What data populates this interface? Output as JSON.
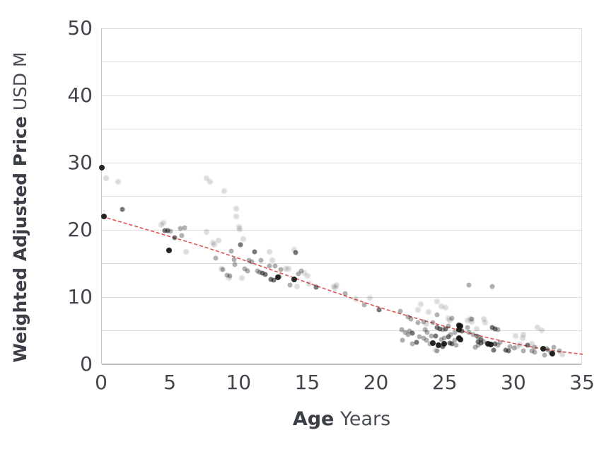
{
  "chart_data": {
    "type": "scatter",
    "title": "",
    "ylabel_bold": "Weighted Adjusted Price",
    "ylabel_rest": "USD M",
    "xlabel_bold": "Age",
    "xlabel_rest": "Years",
    "xlim": [
      0,
      35
    ],
    "ylim": [
      0,
      50
    ],
    "x_ticks": [
      0,
      5,
      10,
      15,
      20,
      25,
      30,
      35
    ],
    "y_ticks": [
      0,
      10,
      20,
      30,
      40,
      50
    ],
    "gridline_step": 5,
    "grid_on": true,
    "legend": "none",
    "colors": {
      "point": "#141414",
      "trend": "#e05353",
      "grid": "#dcdddf",
      "axis_line": "#b9bcc0",
      "text_dark": "#3b3e46",
      "text_regular": "#484c54"
    },
    "shade_opacity": {
      "l": 0.15,
      "m": 0.33,
      "d": 0.58,
      "k": 0.93
    },
    "shade_size": {
      "l": 8,
      "m": 7,
      "d": 7,
      "k": 8
    },
    "trend": {
      "style": "dashed",
      "color": "#e05353",
      "anchors": [
        [
          0,
          22
        ],
        [
          4,
          19.6
        ],
        [
          8,
          17.1
        ],
        [
          12,
          14.3
        ],
        [
          16,
          11.4
        ],
        [
          20,
          8.6
        ],
        [
          24,
          6.2
        ],
        [
          28,
          4.0
        ],
        [
          31,
          2.7
        ],
        [
          33,
          2.0
        ],
        [
          35,
          1.5
        ]
      ]
    },
    "points": [
      [
        0.0,
        29.3,
        "k"
      ],
      [
        0.3,
        27.7,
        "l"
      ],
      [
        1.2,
        27.2,
        "l"
      ],
      [
        1.5,
        23.1,
        "d"
      ],
      [
        0.15,
        22.0,
        "k"
      ],
      [
        4.3,
        20.7,
        "l"
      ],
      [
        4.5,
        21.1,
        "l"
      ],
      [
        4.6,
        19.9,
        "d"
      ],
      [
        4.8,
        19.9,
        "d"
      ],
      [
        5.0,
        19.8,
        "m"
      ],
      [
        5.3,
        18.8,
        "d"
      ],
      [
        4.9,
        17.0,
        "k"
      ],
      [
        5.7,
        20.2,
        "m"
      ],
      [
        6.0,
        20.3,
        "m"
      ],
      [
        5.8,
        19.2,
        "m"
      ],
      [
        6.1,
        16.7,
        "l"
      ],
      [
        7.6,
        27.7,
        "l"
      ],
      [
        7.9,
        27.2,
        "l"
      ],
      [
        8.9,
        25.8,
        "l"
      ],
      [
        7.6,
        19.7,
        "l"
      ],
      [
        8.1,
        18.1,
        "l"
      ],
      [
        8.2,
        17.8,
        "l"
      ],
      [
        8.5,
        18.4,
        "l"
      ],
      [
        8.3,
        15.8,
        "m"
      ],
      [
        8.7,
        14.2,
        "l"
      ],
      [
        8.8,
        14.1,
        "m"
      ],
      [
        9.1,
        13.3,
        "m"
      ],
      [
        9.3,
        13.2,
        "m"
      ],
      [
        9.25,
        12.8,
        "l"
      ],
      [
        9.8,
        23.2,
        "l"
      ],
      [
        9.8,
        22.0,
        "l"
      ],
      [
        10.0,
        20.4,
        "l"
      ],
      [
        10.05,
        20.1,
        "l"
      ],
      [
        10.3,
        18.6,
        "l"
      ],
      [
        10.1,
        17.8,
        "d"
      ],
      [
        9.4,
        16.8,
        "m"
      ],
      [
        9.6,
        15.6,
        "m"
      ],
      [
        9.7,
        14.8,
        "m"
      ],
      [
        10.2,
        12.8,
        "l"
      ],
      [
        10.4,
        14.2,
        "m"
      ],
      [
        10.6,
        13.9,
        "m"
      ],
      [
        10.7,
        15.5,
        "m"
      ],
      [
        10.9,
        15.3,
        "m"
      ],
      [
        11.1,
        16.7,
        "d"
      ],
      [
        11.3,
        13.9,
        "m"
      ],
      [
        11.5,
        13.7,
        "m"
      ],
      [
        11.6,
        15.5,
        "m"
      ],
      [
        12.2,
        16.7,
        "l"
      ],
      [
        12.4,
        15.5,
        "l"
      ],
      [
        11.7,
        13.6,
        "d"
      ],
      [
        11.9,
        13.4,
        "d"
      ],
      [
        12.3,
        12.6,
        "d"
      ],
      [
        12.5,
        12.5,
        "d"
      ],
      [
        12.6,
        14.6,
        "m"
      ],
      [
        12.9,
        13.1,
        "m"
      ],
      [
        12.2,
        14.6,
        "m"
      ],
      [
        12.8,
        13.0,
        "k"
      ],
      [
        13.0,
        14.1,
        "m"
      ],
      [
        13.4,
        14.2,
        "l"
      ],
      [
        13.6,
        14.2,
        "l"
      ],
      [
        13.7,
        11.8,
        "m"
      ],
      [
        14.0,
        17.1,
        "l"
      ],
      [
        14.1,
        16.6,
        "d"
      ],
      [
        14.0,
        12.6,
        "k"
      ],
      [
        14.3,
        13.5,
        "m"
      ],
      [
        14.5,
        13.9,
        "m"
      ],
      [
        14.7,
        13.6,
        "l"
      ],
      [
        15.0,
        13.2,
        "l"
      ],
      [
        15.1,
        12.0,
        "l"
      ],
      [
        14.2,
        11.6,
        "l"
      ],
      [
        15.6,
        11.5,
        "d"
      ],
      [
        16.9,
        11.6,
        "l"
      ],
      [
        17.0,
        11.4,
        "l"
      ],
      [
        17.1,
        11.8,
        "l"
      ],
      [
        17.7,
        10.5,
        "m"
      ],
      [
        18.5,
        9.7,
        "l"
      ],
      [
        19.1,
        8.8,
        "m"
      ],
      [
        19.5,
        9.9,
        "l"
      ],
      [
        20.2,
        8.1,
        "d"
      ],
      [
        21.7,
        7.9,
        "m"
      ],
      [
        22.3,
        7.1,
        "m"
      ],
      [
        22.5,
        6.7,
        "m"
      ],
      [
        23.0,
        8.1,
        "l"
      ],
      [
        23.2,
        8.9,
        "l"
      ],
      [
        23.8,
        7.8,
        "l"
      ],
      [
        23.4,
        6.3,
        "m"
      ],
      [
        23.0,
        6.2,
        "m"
      ],
      [
        23.6,
        6.0,
        "l"
      ],
      [
        24.1,
        6.2,
        "m"
      ],
      [
        24.4,
        7.4,
        "m"
      ],
      [
        24.7,
        8.6,
        "l"
      ],
      [
        25.0,
        8.4,
        "l"
      ],
      [
        24.4,
        9.4,
        "l"
      ],
      [
        25.3,
        6.5,
        "l"
      ],
      [
        25.5,
        6.8,
        "m"
      ],
      [
        25.2,
        6.8,
        "l"
      ],
      [
        21.8,
        5.2,
        "m"
      ],
      [
        21.9,
        3.6,
        "m"
      ],
      [
        22.1,
        4.7,
        "m"
      ],
      [
        22.3,
        4.4,
        "m"
      ],
      [
        22.4,
        4.9,
        "m"
      ],
      [
        22.6,
        4.6,
        "d"
      ],
      [
        22.9,
        3.3,
        "d"
      ],
      [
        22.6,
        3.1,
        "m"
      ],
      [
        23.1,
        4.1,
        "m"
      ],
      [
        23.4,
        3.9,
        "m"
      ],
      [
        23.5,
        5.2,
        "m"
      ],
      [
        23.6,
        3.6,
        "m"
      ],
      [
        23.7,
        4.7,
        "m"
      ],
      [
        23.9,
        3.1,
        "m"
      ],
      [
        24.0,
        4.2,
        "m"
      ],
      [
        24.1,
        3.2,
        "k"
      ],
      [
        24.3,
        4.2,
        "d"
      ],
      [
        24.4,
        5.5,
        "d"
      ],
      [
        24.6,
        5.3,
        "d"
      ],
      [
        24.8,
        5.2,
        "m"
      ],
      [
        25.0,
        5.3,
        "d"
      ],
      [
        25.2,
        5.7,
        "m"
      ],
      [
        25.2,
        4.1,
        "d"
      ],
      [
        24.9,
        3.9,
        "m"
      ],
      [
        24.7,
        3.7,
        "m"
      ],
      [
        24.5,
        2.8,
        "k"
      ],
      [
        24.8,
        2.6,
        "d"
      ],
      [
        24.4,
        2.0,
        "m"
      ],
      [
        24.3,
        2.1,
        "l"
      ],
      [
        24.9,
        3.1,
        "k"
      ],
      [
        25.4,
        4.4,
        "m"
      ],
      [
        25.7,
        4.7,
        "m"
      ],
      [
        25.3,
        3.2,
        "d"
      ],
      [
        25.7,
        3.6,
        "m"
      ],
      [
        25.5,
        3.1,
        "d"
      ],
      [
        25.8,
        2.8,
        "m"
      ],
      [
        26.0,
        5.8,
        "k"
      ],
      [
        26.1,
        5.7,
        "k"
      ],
      [
        26.0,
        5.2,
        "k"
      ],
      [
        26.2,
        4.9,
        "d"
      ],
      [
        26.0,
        3.9,
        "k"
      ],
      [
        26.1,
        3.7,
        "k"
      ],
      [
        26.6,
        5.5,
        "m"
      ],
      [
        26.7,
        4.7,
        "m"
      ],
      [
        27.0,
        4.4,
        "m"
      ],
      [
        27.3,
        5.3,
        "l"
      ],
      [
        27.4,
        4.1,
        "m"
      ],
      [
        27.6,
        3.7,
        "d"
      ],
      [
        26.9,
        6.3,
        "l"
      ],
      [
        26.6,
        6.5,
        "l"
      ],
      [
        26.8,
        6.7,
        "l"
      ],
      [
        27.2,
        2.5,
        "m"
      ],
      [
        27.4,
        2.8,
        "m"
      ],
      [
        26.7,
        11.8,
        "m"
      ],
      [
        28.4,
        11.6,
        "m"
      ],
      [
        26.9,
        6.7,
        "m"
      ],
      [
        27.8,
        6.7,
        "l"
      ],
      [
        27.9,
        6.2,
        "l"
      ],
      [
        28.4,
        5.5,
        "d"
      ],
      [
        28.6,
        5.3,
        "d"
      ],
      [
        28.8,
        5.2,
        "m"
      ],
      [
        27.3,
        4.2,
        "m"
      ],
      [
        27.4,
        3.4,
        "d"
      ],
      [
        27.6,
        3.2,
        "d"
      ],
      [
        27.8,
        3.4,
        "m"
      ],
      [
        28.1,
        3.1,
        "k"
      ],
      [
        28.3,
        2.9,
        "k"
      ],
      [
        28.6,
        3.1,
        "d"
      ],
      [
        28.8,
        2.8,
        "m"
      ],
      [
        29.0,
        3.3,
        "m"
      ],
      [
        28.5,
        2.1,
        "d"
      ],
      [
        29.4,
        2.1,
        "d"
      ],
      [
        29.6,
        2.0,
        "d"
      ],
      [
        29.7,
        2.6,
        "m"
      ],
      [
        30.0,
        2.4,
        "m"
      ],
      [
        30.1,
        4.2,
        "l"
      ],
      [
        30.2,
        2.6,
        "l"
      ],
      [
        30.4,
        2.9,
        "l"
      ],
      [
        30.6,
        3.9,
        "l"
      ],
      [
        30.7,
        4.4,
        "l"
      ],
      [
        30.7,
        2.0,
        "m"
      ],
      [
        31.0,
        2.8,
        "d"
      ],
      [
        31.3,
        3.1,
        "l"
      ],
      [
        31.3,
        2.0,
        "m"
      ],
      [
        31.5,
        2.5,
        "m"
      ],
      [
        31.5,
        1.8,
        "m"
      ],
      [
        31.7,
        5.5,
        "l"
      ],
      [
        32.0,
        5.1,
        "l"
      ],
      [
        32.1,
        2.3,
        "k"
      ],
      [
        32.2,
        1.4,
        "m"
      ],
      [
        32.4,
        2.3,
        "m"
      ],
      [
        32.5,
        2.1,
        "m"
      ],
      [
        32.7,
        1.7,
        "m"
      ],
      [
        32.8,
        1.6,
        "k"
      ],
      [
        32.9,
        2.5,
        "m"
      ],
      [
        33.3,
        2.0,
        "m"
      ],
      [
        33.5,
        1.5,
        "l"
      ]
    ]
  }
}
